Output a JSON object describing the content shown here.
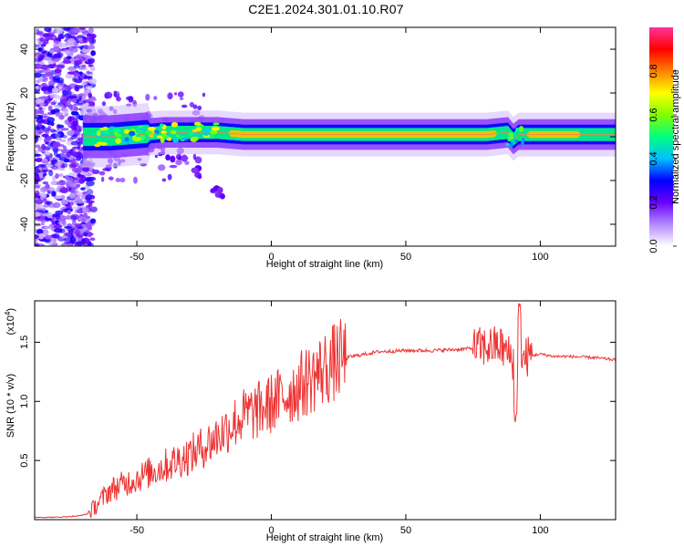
{
  "title": "C2E1.2024.301.01.10.R07",
  "chart_data": [
    {
      "type": "heatmap",
      "xlabel": "Height of straight line (km)",
      "ylabel": "Frequency (Hz)",
      "xlim": [
        -88,
        128
      ],
      "ylim": [
        -50,
        50
      ],
      "xticks": [
        -50,
        0,
        50,
        100
      ],
      "yticks": [
        -40,
        -20,
        0,
        20,
        40
      ],
      "xtick_labels": [
        "-50",
        "0",
        "50",
        "100"
      ],
      "ytick_labels": [
        "-40",
        "-20",
        "0",
        "20",
        "40"
      ],
      "colorbar": {
        "label": "Normalized spectral amplitude",
        "range": [
          0,
          1
        ],
        "ticks": [
          0.0,
          0.2,
          0.4,
          0.6,
          0.8
        ],
        "tick_labels": [
          "0.0",
          "0.2",
          "0.4",
          "0.6",
          "0.8"
        ],
        "colors": [
          "#ffffff",
          "#b388ff",
          "#6a00ff",
          "#0000ff",
          "#00c0ff",
          "#00ff80",
          "#80ff00",
          "#ffff00",
          "#ff8000",
          "#ff0000",
          "#ff3399"
        ]
      },
      "ridge": {
        "description_points_x": [
          -68,
          -60,
          -50,
          -40,
          -30,
          -20,
          -10,
          0,
          20,
          40,
          60,
          80,
          88,
          90,
          92,
          100,
          110,
          128
        ],
        "frequency_center": [
          0,
          0,
          1,
          2,
          2,
          2,
          1,
          1,
          1,
          1,
          1,
          1,
          2,
          -1,
          1,
          1,
          1,
          1
        ],
        "peak_amplitude": [
          0.5,
          0.6,
          0.6,
          0.6,
          0.65,
          0.7,
          0.8,
          0.9,
          0.85,
          0.75,
          0.8,
          0.85,
          0.6,
          0.55,
          0.6,
          0.9,
          0.8,
          0.6
        ]
      },
      "secondary_branch": {
        "x": [
          -52,
          -45,
          -38,
          -30,
          -24,
          -18
        ],
        "frequency": [
          2,
          -4,
          -8,
          -13,
          -20,
          -27
        ]
      }
    },
    {
      "type": "line",
      "xlabel": "Height of straight line (km)",
      "ylabel": "SNR (10 * v/v)",
      "y_multiplier_label": "(x10",
      "y_multiplier_exp": "4",
      "y_multiplier_close": ")",
      "xlim": [
        -88,
        128
      ],
      "ylim": [
        0,
        1.85
      ],
      "xticks": [
        -50,
        0,
        50,
        100
      ],
      "yticks": [
        0.5,
        1.0,
        1.5
      ],
      "xtick_labels": [
        "-50",
        "0",
        "50",
        "100"
      ],
      "ytick_labels": [
        "0.5",
        "1.0",
        "1.5"
      ],
      "color": "#ee3333",
      "series": [
        {
          "x": [
            -88,
            -80,
            -72,
            -68,
            -66,
            -64,
            -62,
            -60,
            -55,
            -50,
            -45,
            -40,
            -35,
            -30,
            -25,
            -20,
            -15,
            -10,
            -5,
            0,
            5,
            10,
            15,
            20,
            25,
            30,
            35,
            40,
            50,
            60,
            70,
            75,
            80,
            85,
            88,
            90,
            92,
            95,
            100,
            105,
            110,
            120,
            128
          ],
          "y": [
            0.02,
            0.02,
            0.03,
            0.05,
            0.1,
            0.15,
            0.2,
            0.25,
            0.3,
            0.35,
            0.4,
            0.45,
            0.5,
            0.55,
            0.62,
            0.7,
            0.8,
            0.88,
            0.92,
            0.98,
            1.05,
            1.12,
            1.2,
            1.28,
            1.35,
            1.38,
            1.4,
            1.42,
            1.43,
            1.43,
            1.44,
            1.45,
            1.46,
            1.47,
            1.4,
            1.35,
            1.3,
            1.38,
            1.4,
            1.38,
            1.38,
            1.37,
            1.35
          ]
        }
      ]
    }
  ]
}
